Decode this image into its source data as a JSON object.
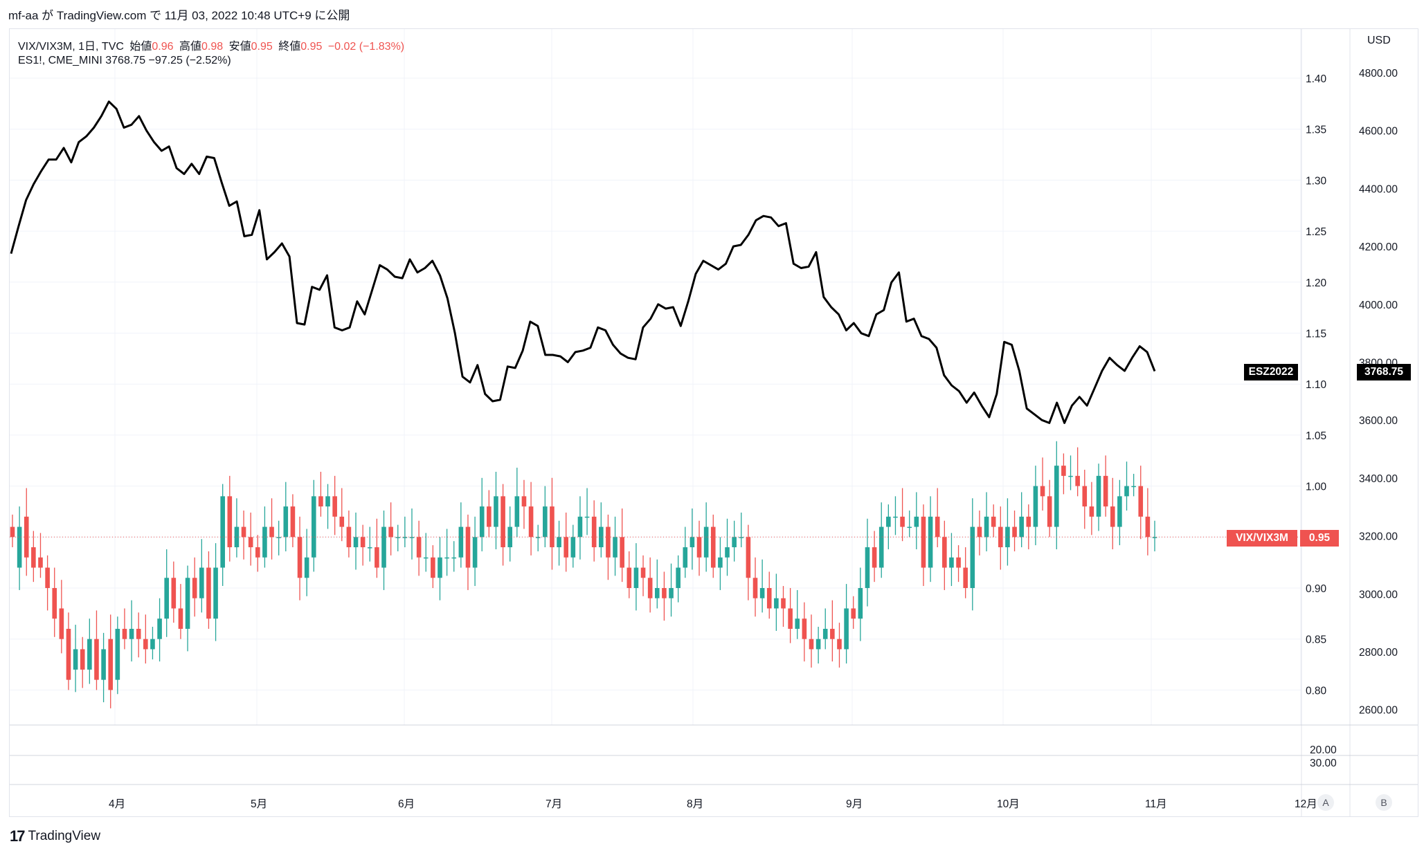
{
  "caption": "mf-aa が TradingView.com で 11月 03, 2022 10:48 UTC+9 に公開",
  "legend": {
    "main_prefix": "VIX/VIX3M, 1日, TVC",
    "open_label": "始値",
    "open": "0.96",
    "high_label": "高値",
    "high": "0.98",
    "low_label": "安値",
    "low": "0.95",
    "close_label": "終値",
    "close": "0.95",
    "change": "−0.02 (−1.83%)",
    "secondary": "ES1!, CME_MINI  3768.75  −97.25 (−2.52%)"
  },
  "currency": "USD",
  "tags": {
    "es_name": "ESZ2022",
    "es_value": "3768.75",
    "vix_name": "VIX/VIX3M",
    "vix_value": "0.95"
  },
  "colors": {
    "up": "#26a69a",
    "down": "#ef5350",
    "es_line": "#000000"
  },
  "buttons": {
    "a": "A",
    "b": "B"
  },
  "footer": "TradingView",
  "chart_data": {
    "type": "candlestick+line",
    "x_labels": [
      "4月",
      "5月",
      "6月",
      "7月",
      "8月",
      "9月",
      "10月",
      "11月",
      "12月"
    ],
    "ratio_axis": {
      "ticks": [
        "1.40",
        "1.35",
        "1.30",
        "1.25",
        "1.20",
        "1.15",
        "1.10",
        "1.05",
        "1.00",
        "0.95",
        "0.90",
        "0.85",
        "0.80"
      ],
      "range": [
        0.78,
        1.42
      ]
    },
    "usd_axis": {
      "ticks": [
        "4800.00",
        "4600.00",
        "4400.00",
        "4200.00",
        "4000.00",
        "3800.00",
        "3600.00",
        "3400.00",
        "3200.00",
        "3000.00",
        "2800.00",
        "2600.00"
      ],
      "range": [
        2560,
        4840
      ]
    },
    "lower_pane_ticks": [
      "20.00",
      "30.00"
    ],
    "es_series": [
      4175,
      4270,
      4360,
      4415,
      4460,
      4500,
      4500,
      4540,
      4490,
      4560,
      4580,
      4610,
      4650,
      4700,
      4675,
      4610,
      4620,
      4650,
      4600,
      4560,
      4530,
      4545,
      4470,
      4450,
      4485,
      4450,
      4510,
      4505,
      4420,
      4340,
      4355,
      4235,
      4240,
      4325,
      4155,
      4180,
      4210,
      4165,
      3935,
      3930,
      4060,
      4050,
      4100,
      3920,
      3910,
      3920,
      4010,
      3965,
      4050,
      4135,
      4120,
      4095,
      4090,
      4155,
      4110,
      4125,
      4150,
      4100,
      4020,
      3900,
      3750,
      3730,
      3790,
      3690,
      3665,
      3670,
      3785,
      3780,
      3840,
      3940,
      3925,
      3825,
      3825,
      3820,
      3800,
      3835,
      3840,
      3850,
      3920,
      3910,
      3860,
      3830,
      3815,
      3810,
      3920,
      3950,
      4000,
      3985,
      3990,
      3925,
      4010,
      4105,
      4150,
      4135,
      4120,
      4140,
      4200,
      4205,
      4240,
      4290,
      4305,
      4300,
      4270,
      4280,
      4140,
      4125,
      4130,
      4180,
      4025,
      3990,
      3965,
      3910,
      3935,
      3900,
      3890,
      3965,
      3980,
      4075,
      4110,
      3940,
      3950,
      3890,
      3880,
      3850,
      3755,
      3720,
      3700,
      3660,
      3695,
      3650,
      3610,
      3690,
      3870,
      3860,
      3770,
      3640,
      3620,
      3600,
      3590,
      3660,
      3590,
      3650,
      3680,
      3650,
      3710,
      3770,
      3815,
      3790,
      3770,
      3815,
      3855,
      3835,
      3768.75
    ],
    "vix_ratio": {
      "open": [
        0.96,
        0.92,
        0.97,
        0.94,
        0.93,
        0.92,
        0.9,
        0.88,
        0.86,
        0.82,
        0.84,
        0.82,
        0.85,
        0.81,
        0.85,
        0.81,
        0.86,
        0.85,
        0.86,
        0.85,
        0.84,
        0.85,
        0.87,
        0.91,
        0.88,
        0.86,
        0.91,
        0.89,
        0.92,
        0.87,
        0.92,
        0.99,
        0.94,
        0.96,
        0.95,
        0.94,
        0.93,
        0.96,
        0.95,
        0.95,
        0.98,
        0.95,
        0.91,
        0.93,
        0.99,
        0.98,
        0.99,
        0.97,
        0.96,
        0.94,
        0.95,
        0.94,
        0.94,
        0.92,
        0.96,
        0.95,
        0.95,
        0.95,
        0.95,
        0.93,
        0.93,
        0.91,
        0.93,
        0.93,
        0.93,
        0.96,
        0.92,
        0.95,
        0.98,
        0.96,
        0.99,
        0.94,
        0.96,
        0.99,
        0.98,
        0.95,
        0.95,
        0.98,
        0.94,
        0.95,
        0.93,
        0.95,
        0.97,
        0.97,
        0.94,
        0.96,
        0.93,
        0.95,
        0.92,
        0.9,
        0.92,
        0.91,
        0.89,
        0.9,
        0.89,
        0.9,
        0.92,
        0.94,
        0.95,
        0.93,
        0.96,
        0.92,
        0.93,
        0.94,
        0.95,
        0.95,
        0.91,
        0.89,
        0.9,
        0.88,
        0.89,
        0.88,
        0.86,
        0.87,
        0.85,
        0.84,
        0.85,
        0.86,
        0.85,
        0.84,
        0.88,
        0.87,
        0.9,
        0.94,
        0.92,
        0.96,
        0.97,
        0.97,
        0.96,
        0.96,
        0.97,
        0.92,
        0.97,
        0.95,
        0.92,
        0.93,
        0.92,
        0.9,
        0.96,
        0.95,
        0.97,
        0.96,
        0.94,
        0.96,
        0.95,
        0.97,
        0.96,
        1.0,
        0.99,
        0.96,
        1.02,
        1.01,
        1.01,
        1.0,
        0.98,
        0.97,
        1.01,
        0.98,
        0.96,
        0.99,
        1.0,
        1.0,
        0.97,
        0.95
      ],
      "close": [
        0.95,
        0.96,
        0.93,
        0.92,
        0.92,
        0.9,
        0.87,
        0.85,
        0.81,
        0.84,
        0.82,
        0.85,
        0.81,
        0.84,
        0.8,
        0.86,
        0.85,
        0.86,
        0.85,
        0.84,
        0.85,
        0.87,
        0.91,
        0.88,
        0.86,
        0.91,
        0.89,
        0.92,
        0.87,
        0.92,
        0.99,
        0.94,
        0.96,
        0.95,
        0.94,
        0.93,
        0.96,
        0.95,
        0.95,
        0.98,
        0.95,
        0.91,
        0.93,
        0.99,
        0.98,
        0.99,
        0.97,
        0.96,
        0.94,
        0.95,
        0.94,
        0.94,
        0.92,
        0.96,
        0.95,
        0.95,
        0.95,
        0.95,
        0.93,
        0.93,
        0.91,
        0.93,
        0.93,
        0.93,
        0.96,
        0.92,
        0.95,
        0.98,
        0.96,
        0.99,
        0.94,
        0.96,
        0.99,
        0.98,
        0.95,
        0.95,
        0.98,
        0.94,
        0.95,
        0.93,
        0.95,
        0.97,
        0.97,
        0.94,
        0.96,
        0.93,
        0.95,
        0.92,
        0.9,
        0.92,
        0.91,
        0.89,
        0.9,
        0.89,
        0.9,
        0.92,
        0.94,
        0.95,
        0.93,
        0.96,
        0.92,
        0.93,
        0.94,
        0.95,
        0.95,
        0.91,
        0.89,
        0.9,
        0.88,
        0.89,
        0.88,
        0.86,
        0.87,
        0.85,
        0.84,
        0.85,
        0.86,
        0.85,
        0.84,
        0.88,
        0.87,
        0.9,
        0.94,
        0.92,
        0.96,
        0.97,
        0.97,
        0.96,
        0.96,
        0.97,
        0.92,
        0.97,
        0.95,
        0.92,
        0.93,
        0.92,
        0.9,
        0.96,
        0.95,
        0.97,
        0.96,
        0.94,
        0.96,
        0.95,
        0.97,
        0.96,
        1.0,
        0.99,
        0.96,
        1.02,
        1.01,
        1.01,
        1.0,
        0.98,
        0.97,
        1.01,
        0.98,
        0.96,
        0.99,
        1.0,
        1.0,
        0.97,
        0.95,
        0.95
      ]
    },
    "last_values": {
      "es": 3768.75,
      "vix_ratio": 0.95
    }
  }
}
